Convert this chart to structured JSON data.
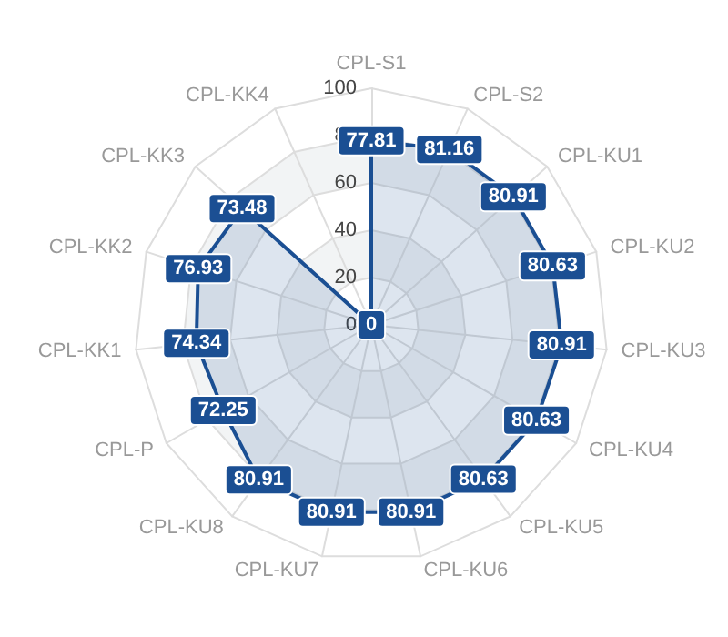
{
  "chart_data": {
    "type": "radar",
    "categories": [
      "CPL-S1",
      "CPL-S2",
      "CPL-KU1",
      "CPL-KU2",
      "CPL-KU3",
      "CPL-KU4",
      "CPL-KU5",
      "CPL-KU6",
      "CPL-KU7",
      "CPL-KU8",
      "CPL-P",
      "CPL-KK1",
      "CPL-KK2",
      "CPL-KK3",
      "CPL-KK4"
    ],
    "series": [
      {
        "color": "#1b4f93",
        "values": [
          77.81,
          81.16,
          80.91,
          80.63,
          80.91,
          80.63,
          80.63,
          80.91,
          80.91,
          80.91,
          72.25,
          74.34,
          76.93,
          73.48,
          0
        ]
      }
    ],
    "ylim": [
      0,
      100
    ],
    "yticks": [
      0,
      20,
      40,
      60,
      80,
      100
    ],
    "data_labels": true,
    "line_style": "solid"
  }
}
